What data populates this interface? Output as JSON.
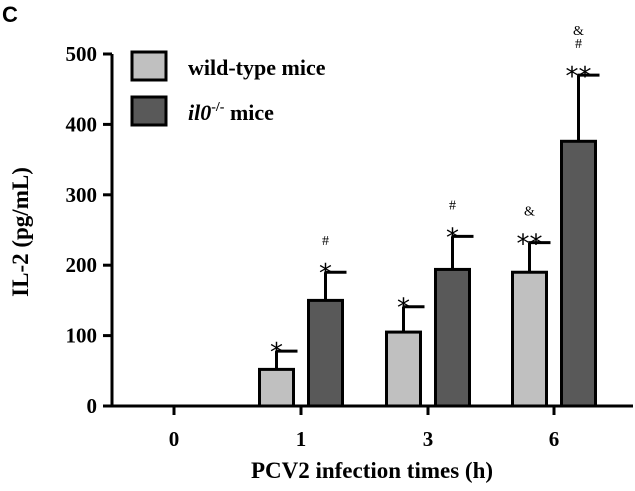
{
  "panel_label": "C",
  "chart_data": {
    "type": "bar",
    "categories": [
      "0",
      "1",
      "3",
      "6"
    ],
    "series": [
      {
        "name": "wild-type mice",
        "color": "#c0c0c0",
        "values": [
          0,
          52,
          105,
          190
        ],
        "errors": [
          0,
          26,
          36,
          42
        ],
        "annotations": [
          [],
          [
            "*"
          ],
          [
            "*"
          ],
          [
            "**",
            "&"
          ]
        ]
      },
      {
        "name": "il0-/- mice",
        "name_main": "il0",
        "name_sup": "-/-",
        "name_suffix": " mice",
        "color": "#595959",
        "values": [
          0,
          150,
          194,
          376
        ],
        "errors": [
          0,
          40,
          47,
          94
        ],
        "annotations": [
          [],
          [
            "*",
            "#"
          ],
          [
            "*",
            "#"
          ],
          [
            "**",
            "#",
            "&"
          ]
        ]
      }
    ],
    "title": "",
    "xlabel": "PCV2 infection times (h)",
    "ylabel": "IL-2 (pg/mL)",
    "ylim": [
      0,
      500
    ],
    "yticks": [
      0,
      100,
      200,
      300,
      400,
      500
    ],
    "grid": false,
    "legend_position": "top-left"
  }
}
